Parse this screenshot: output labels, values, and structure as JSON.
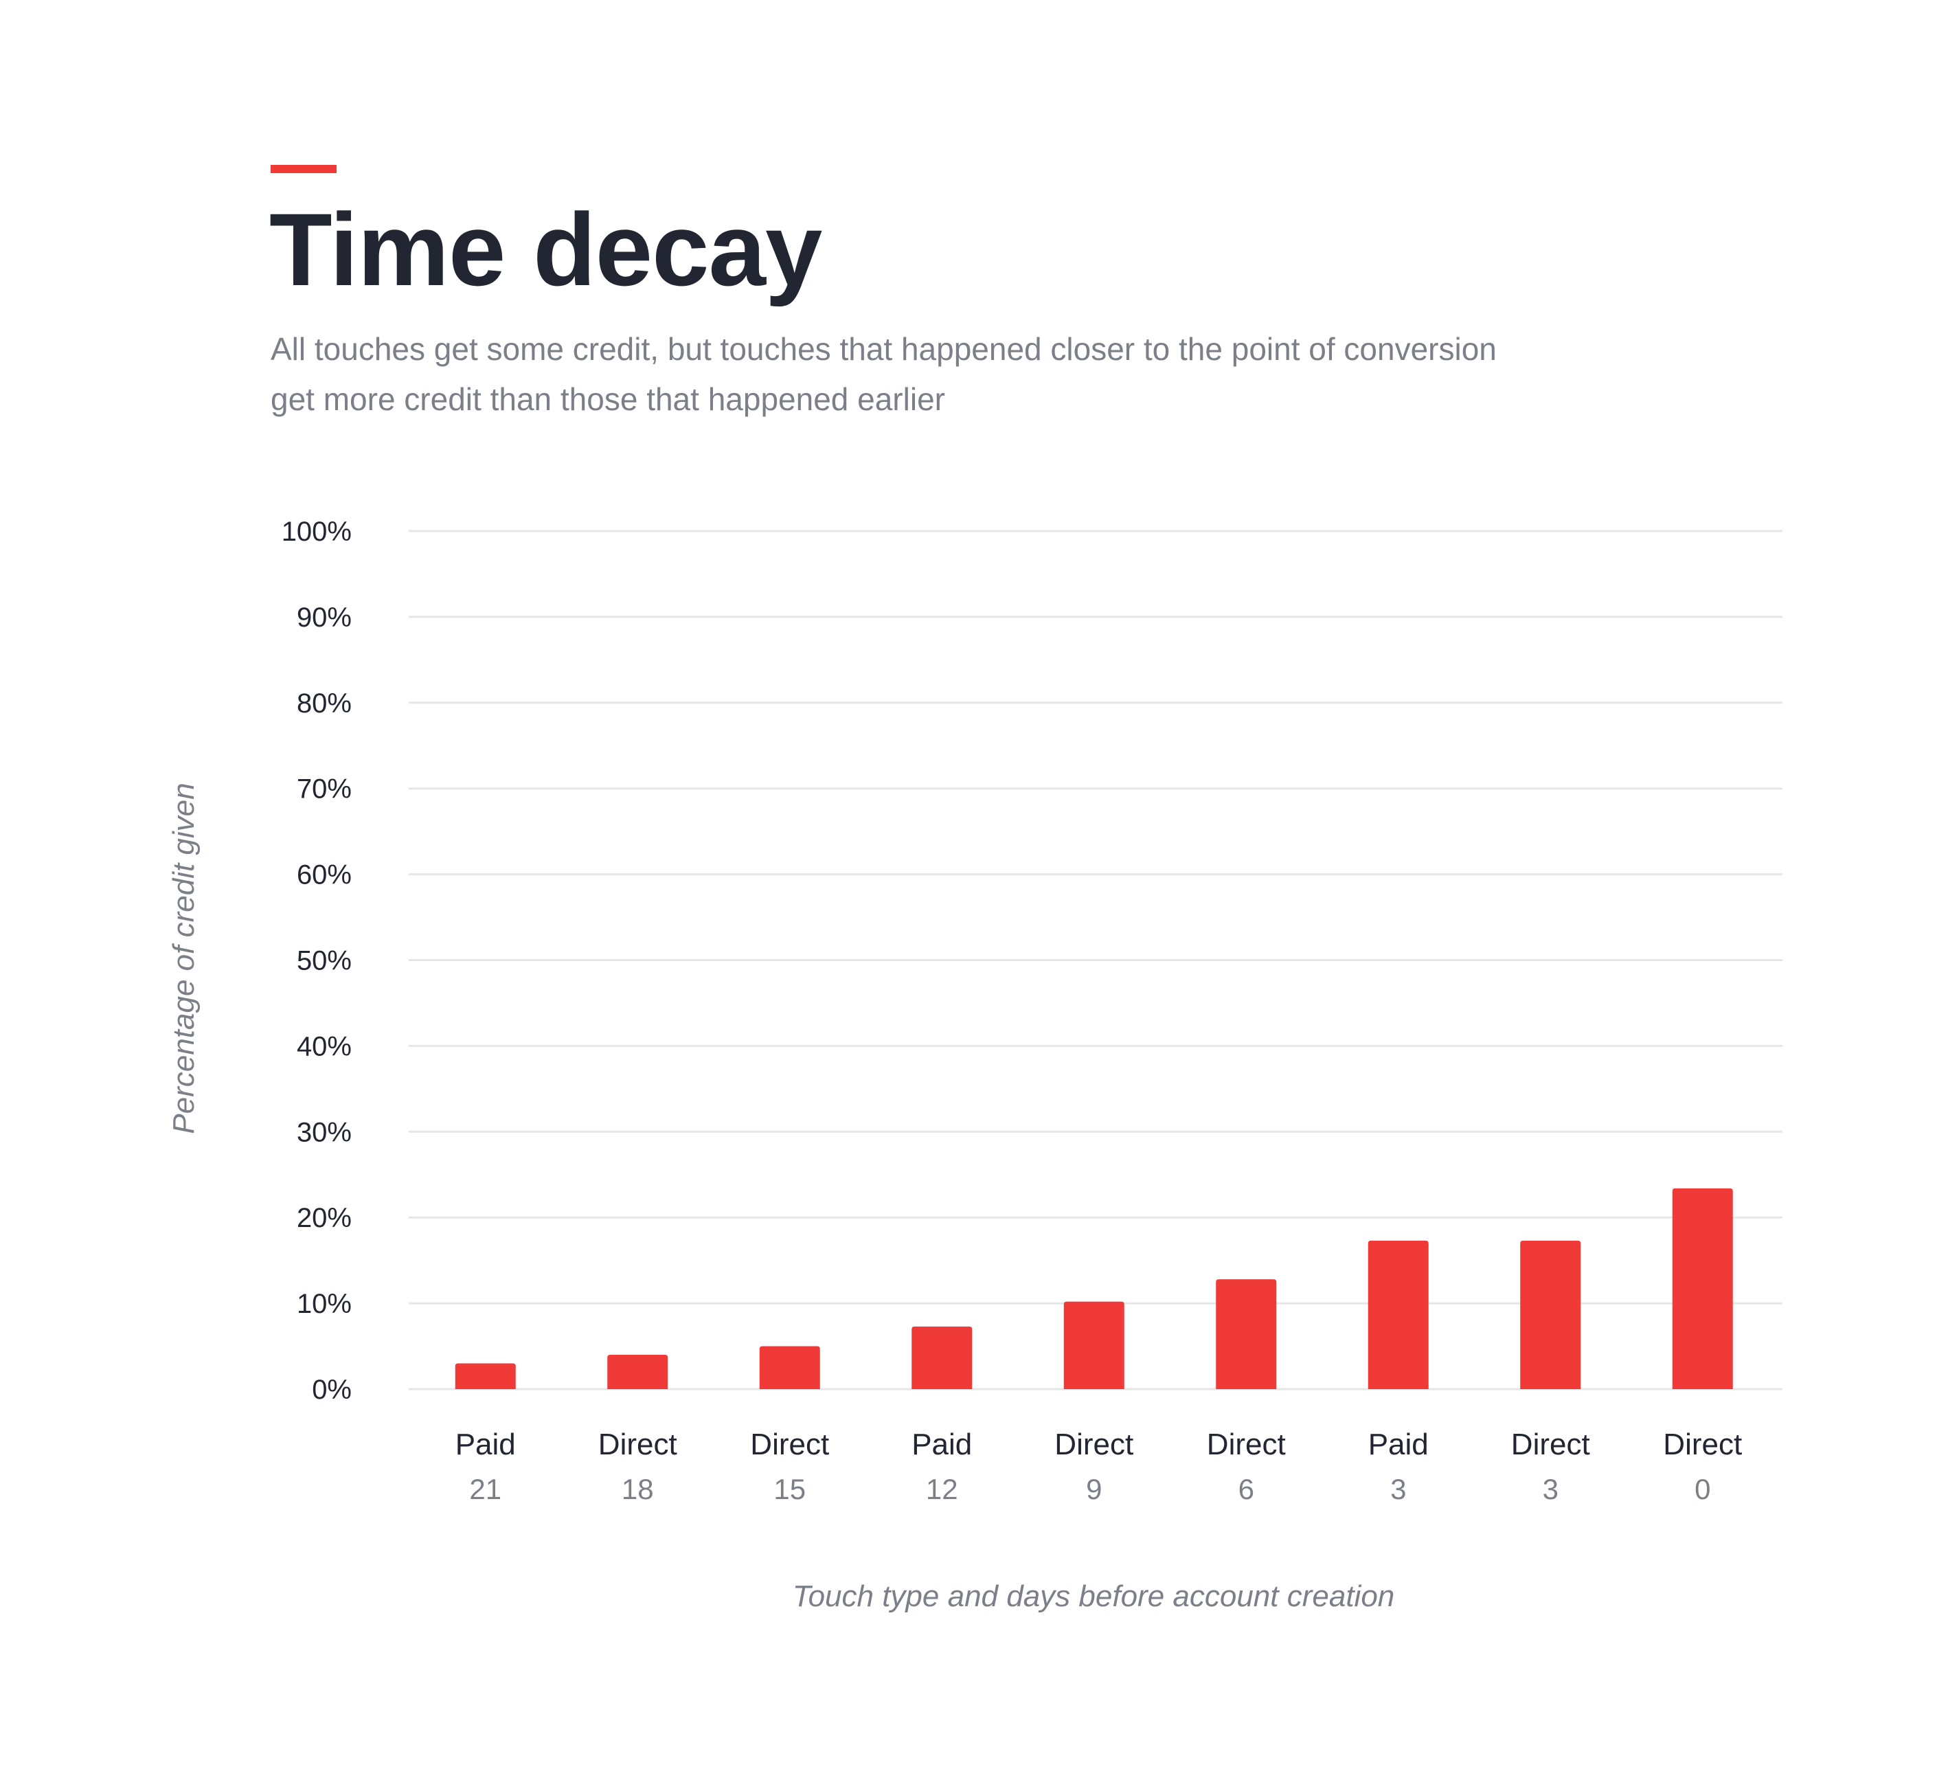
{
  "header": {
    "title": "Time decay",
    "subtitle": "All touches get some credit, but touches that happened closer to the point of conversion get more credit than those that happened earlier",
    "accent_color": "#ef3a37"
  },
  "chart_data": {
    "type": "bar",
    "title": "Time decay",
    "subtitle": "All touches get some credit, but touches that happened closer to the point of conversion get more credit than those that happened earlier",
    "categories": [
      "Paid",
      "Direct",
      "Direct",
      "Paid",
      "Direct",
      "Direct",
      "Paid",
      "Direct",
      "Direct"
    ],
    "days": [
      "21",
      "18",
      "15",
      "12",
      "9",
      "6",
      "3",
      "3",
      "0"
    ],
    "values": [
      3,
      4,
      5,
      7.3,
      10.2,
      12.8,
      17.3,
      17.3,
      23.4
    ],
    "xlabel": "Touch type and days before account creation",
    "ylabel": "Percentage of credit given",
    "ylim": [
      0,
      100
    ],
    "yticks": [
      "0%",
      "10%",
      "20%",
      "30%",
      "40%",
      "50%",
      "60%",
      "70%",
      "80%",
      "90%",
      "100%"
    ],
    "grid": true,
    "bar_color": "#ef3a37",
    "grid_color": "#e6e6e6"
  }
}
